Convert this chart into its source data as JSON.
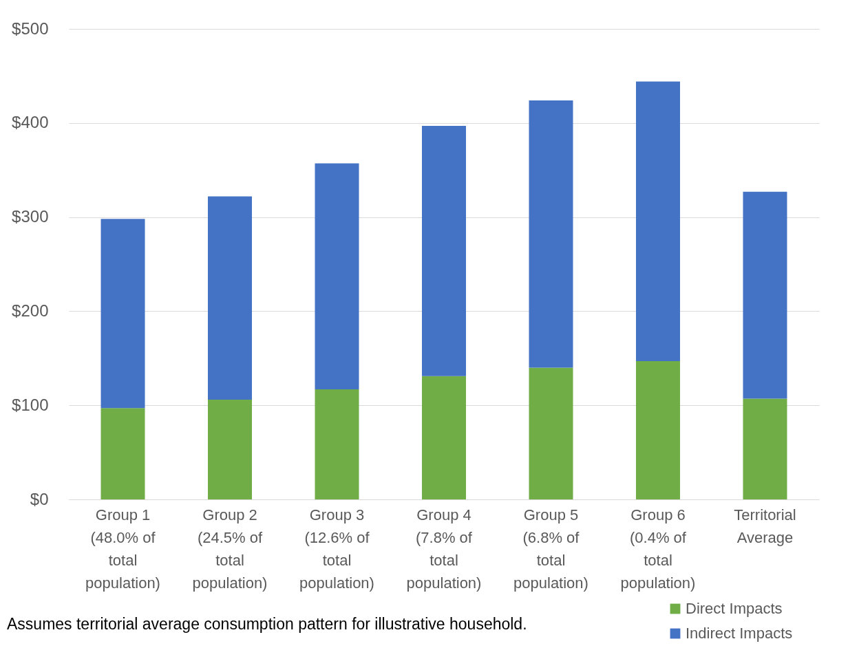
{
  "chart_data": {
    "type": "bar",
    "stacked": true,
    "categories": [
      "Group 1 (48.0% of total population)",
      "Group 2 (24.5% of total population)",
      "Group 3 (12.6% of total population)",
      "Group 4 (7.8% of total population)",
      "Group 5 (6.8% of total population)",
      "Group 6 (0.4% of total population)",
      "Territorial Average"
    ],
    "series": [
      {
        "name": "Direct Impacts",
        "color": "#70ad47",
        "values": [
          97,
          106,
          117,
          131,
          140,
          147,
          107
        ]
      },
      {
        "name": "Indirect Impacts",
        "color": "#4472c4",
        "values": [
          201,
          216,
          240,
          266,
          284,
          297,
          220
        ]
      }
    ],
    "ylim": [
      0,
      500
    ],
    "yticks": [
      {
        "value": 0,
        "label": "$0"
      },
      {
        "value": 100,
        "label": "$100"
      },
      {
        "value": 200,
        "label": "$200"
      },
      {
        "value": 300,
        "label": "$300"
      },
      {
        "value": 400,
        "label": "$400"
      },
      {
        "value": 500,
        "label": "$500"
      }
    ],
    "grid": "y",
    "legend": "bottom right",
    "annotations": [
      "Assumes territorial average consumption pattern for illustrative household."
    ]
  }
}
